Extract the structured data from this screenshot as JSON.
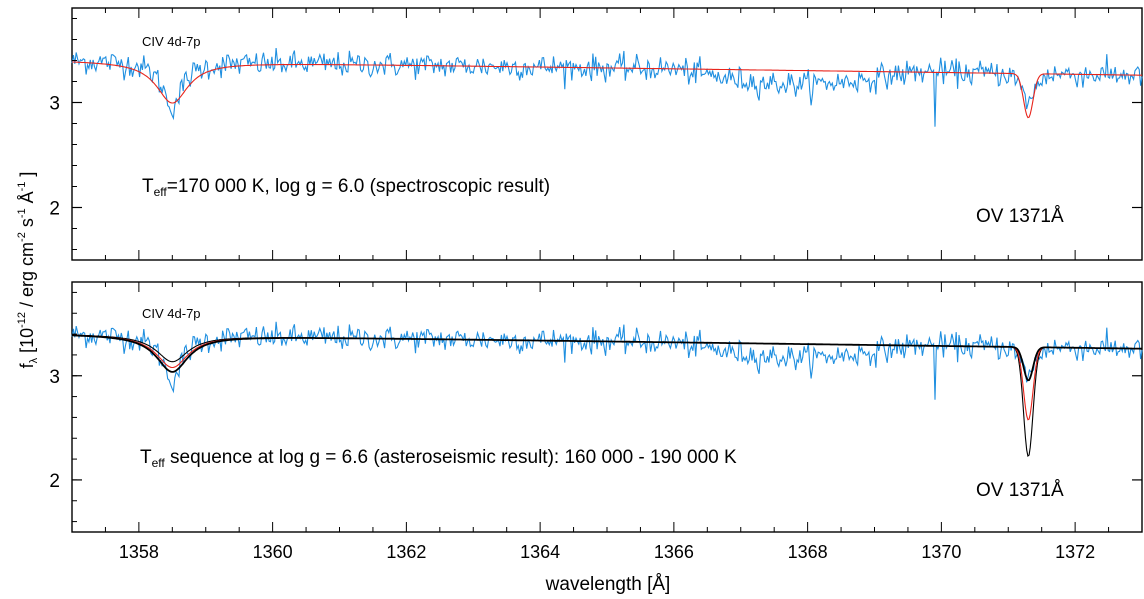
{
  "chart_data": {
    "type": "line",
    "shared_xlabel": "wavelength  [Å]",
    "shared_ylabel": "f_λ  [10^-12 / erg cm^-2 s^-1 Å^-1 ]",
    "xlim": [
      1357.0,
      1373.0
    ],
    "xticks": [
      1358,
      1360,
      1362,
      1364,
      1366,
      1368,
      1370,
      1372
    ],
    "colors": {
      "observed": "#1f8fe0",
      "model": "#e8251c",
      "model_sequence": "#000000"
    },
    "panels": [
      {
        "id": "top",
        "ylim": [
          1.5,
          3.9
        ],
        "yticks": [
          2,
          3
        ],
        "annotations": {
          "line_id_left": "CIV 4d-7p",
          "params_main": "T",
          "params_sub": "eff",
          "params_rest": "=170 000 K, log g = 6.0 (spectroscopic result)",
          "line_id_right": "OV 1371Å"
        },
        "series": [
          {
            "kind": "observed"
          },
          {
            "kind": "model"
          }
        ]
      },
      {
        "id": "bottom",
        "ylim": [
          1.5,
          3.9
        ],
        "yticks": [
          2,
          3
        ],
        "annotations": {
          "line_id_left": "CIV 4d-7p",
          "params_main": "T",
          "params_sub": "eff",
          "params_rest": " sequence at log g = 6.6 (asteroseismic result):  160 000 - 190 000 K",
          "line_id_right": "OV 1371Å"
        },
        "series": [
          {
            "kind": "observed"
          },
          {
            "kind": "model_sequence",
            "models": [
              {
                "civ_depth": 0.25,
                "ov_depth": 0.32
              },
              {
                "civ_depth": 0.22,
                "ov_depth": 0.7
              },
              {
                "civ_depth": 0.18,
                "ov_depth": 1.05
              }
            ]
          }
        ]
      }
    ],
    "spectrum": {
      "continuum": {
        "x": [
          1357.0,
          1373.0
        ],
        "y": [
          3.4,
          3.26
        ]
      },
      "civ_line": {
        "center": 1358.5,
        "width": 0.18
      },
      "ov_line": {
        "center": 1371.3,
        "width": 0.07
      },
      "depressed_region": {
        "x": [
          1366.0,
          1370.1
        ],
        "depth": 0.13
      },
      "noise_rms": 0.06,
      "features": [
        {
          "x": 1358.5,
          "y": 2.88
        },
        {
          "x": 1369.9,
          "y": 2.77
        }
      ]
    }
  }
}
